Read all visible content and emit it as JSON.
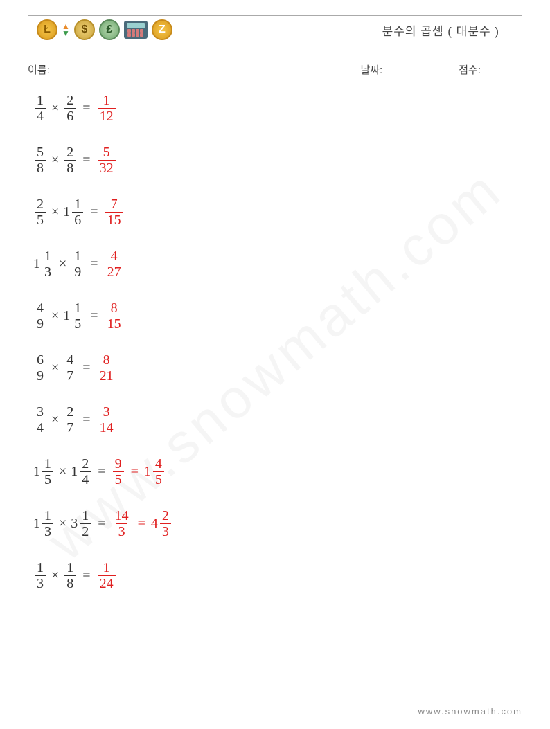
{
  "header": {
    "title": "분수의 곱셈 ( 대분수 )"
  },
  "info": {
    "name_label": "이름:",
    "date_label": "날짜:",
    "score_label": "점수:"
  },
  "colors": {
    "text": "#333333",
    "answer": "#e02020",
    "border": "#aaaaaa",
    "watermark": "rgba(120,120,120,0.07)",
    "footer": "#888888"
  },
  "watermark": "www.snowmath.com",
  "footer": "www.snowmath.com",
  "op_symbol": "×",
  "eq_symbol": "=",
  "problems": [
    {
      "a": {
        "whole": null,
        "num": "1",
        "den": "4"
      },
      "b": {
        "whole": null,
        "num": "2",
        "den": "6"
      },
      "ans": [
        {
          "whole": null,
          "num": "1",
          "den": "12"
        }
      ]
    },
    {
      "a": {
        "whole": null,
        "num": "5",
        "den": "8"
      },
      "b": {
        "whole": null,
        "num": "2",
        "den": "8"
      },
      "ans": [
        {
          "whole": null,
          "num": "5",
          "den": "32"
        }
      ]
    },
    {
      "a": {
        "whole": null,
        "num": "2",
        "den": "5"
      },
      "b": {
        "whole": "1",
        "num": "1",
        "den": "6"
      },
      "ans": [
        {
          "whole": null,
          "num": "7",
          "den": "15"
        }
      ]
    },
    {
      "a": {
        "whole": "1",
        "num": "1",
        "den": "3"
      },
      "b": {
        "whole": null,
        "num": "1",
        "den": "9"
      },
      "ans": [
        {
          "whole": null,
          "num": "4",
          "den": "27"
        }
      ]
    },
    {
      "a": {
        "whole": null,
        "num": "4",
        "den": "9"
      },
      "b": {
        "whole": "1",
        "num": "1",
        "den": "5"
      },
      "ans": [
        {
          "whole": null,
          "num": "8",
          "den": "15"
        }
      ]
    },
    {
      "a": {
        "whole": null,
        "num": "6",
        "den": "9"
      },
      "b": {
        "whole": null,
        "num": "4",
        "den": "7"
      },
      "ans": [
        {
          "whole": null,
          "num": "8",
          "den": "21"
        }
      ]
    },
    {
      "a": {
        "whole": null,
        "num": "3",
        "den": "4"
      },
      "b": {
        "whole": null,
        "num": "2",
        "den": "7"
      },
      "ans": [
        {
          "whole": null,
          "num": "3",
          "den": "14"
        }
      ]
    },
    {
      "a": {
        "whole": "1",
        "num": "1",
        "den": "5"
      },
      "b": {
        "whole": "1",
        "num": "2",
        "den": "4"
      },
      "ans": [
        {
          "whole": null,
          "num": "9",
          "den": "5"
        },
        {
          "whole": "1",
          "num": "4",
          "den": "5"
        }
      ]
    },
    {
      "a": {
        "whole": "1",
        "num": "1",
        "den": "3"
      },
      "b": {
        "whole": "3",
        "num": "1",
        "den": "2"
      },
      "ans": [
        {
          "whole": null,
          "num": "14",
          "den": "3"
        },
        {
          "whole": "4",
          "num": "2",
          "den": "3"
        }
      ]
    },
    {
      "a": {
        "whole": null,
        "num": "1",
        "den": "3"
      },
      "b": {
        "whole": null,
        "num": "1",
        "den": "8"
      },
      "ans": [
        {
          "whole": null,
          "num": "1",
          "den": "24"
        }
      ]
    }
  ]
}
